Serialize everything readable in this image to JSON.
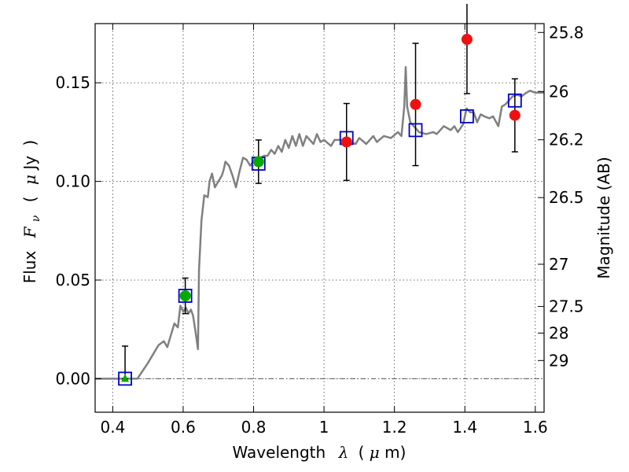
{
  "chart_data": {
    "type": "scatter",
    "xlabel_parts": [
      "Wavelength",
      "λ",
      "(",
      "μ",
      "m)"
    ],
    "ylabel_parts": [
      "Flux",
      "F",
      "ν",
      "(",
      "μ",
      "Jy",
      ")"
    ],
    "ylabel_right": "Magnitude (AB)",
    "xlim": [
      0.35,
      1.625
    ],
    "ylim": [
      -0.017,
      0.18
    ],
    "x_ticks": [
      0.4,
      0.6,
      0.8,
      1.0,
      1.2,
      1.4,
      1.6
    ],
    "x_tick_labels": [
      "0.4",
      "0.6",
      "0.8",
      "1",
      "1.2",
      "1.4",
      "1.6"
    ],
    "y_ticks": [
      0.0,
      0.05,
      0.1,
      0.15
    ],
    "y_tick_labels": [
      "0.00",
      "0.05",
      "0.10",
      "0.15"
    ],
    "mag_ticks": [
      {
        "label": "25.8",
        "flux": 0.1755
      },
      {
        "label": "26",
        "flux": 0.1456
      },
      {
        "label": "26.2",
        "flux": 0.1211
      },
      {
        "label": "26.5",
        "flux": 0.0918
      },
      {
        "label": "27",
        "flux": 0.058
      },
      {
        "label": "27.5",
        "flux": 0.0366
      },
      {
        "label": "28",
        "flux": 0.0231
      },
      {
        "label": "29",
        "flux": 0.0092
      }
    ],
    "grid": true,
    "zero_line": true,
    "sed_model": {
      "name": "model spectrum",
      "color": "#808080",
      "points": [
        [
          0.35,
          0.0
        ],
        [
          0.47,
          0.0
        ],
        [
          0.485,
          0.004
        ],
        [
          0.5,
          0.008
        ],
        [
          0.52,
          0.014
        ],
        [
          0.53,
          0.017
        ],
        [
          0.545,
          0.019
        ],
        [
          0.555,
          0.016
        ],
        [
          0.565,
          0.022
        ],
        [
          0.575,
          0.028
        ],
        [
          0.585,
          0.026
        ],
        [
          0.592,
          0.037
        ],
        [
          0.6,
          0.034
        ],
        [
          0.608,
          0.036
        ],
        [
          0.615,
          0.033
        ],
        [
          0.622,
          0.035
        ],
        [
          0.628,
          0.032
        ],
        [
          0.635,
          0.024
        ],
        [
          0.642,
          0.015
        ],
        [
          0.645,
          0.055
        ],
        [
          0.652,
          0.08
        ],
        [
          0.66,
          0.093
        ],
        [
          0.67,
          0.092
        ],
        [
          0.675,
          0.1
        ],
        [
          0.682,
          0.104
        ],
        [
          0.69,
          0.097
        ],
        [
          0.7,
          0.1
        ],
        [
          0.71,
          0.103
        ],
        [
          0.715,
          0.106
        ],
        [
          0.72,
          0.11
        ],
        [
          0.73,
          0.108
        ],
        [
          0.74,
          0.103
        ],
        [
          0.75,
          0.097
        ],
        [
          0.76,
          0.105
        ],
        [
          0.77,
          0.112
        ],
        [
          0.78,
          0.111
        ],
        [
          0.79,
          0.108
        ],
        [
          0.8,
          0.11
        ],
        [
          0.81,
          0.111
        ],
        [
          0.83,
          0.113
        ],
        [
          0.84,
          0.113
        ],
        [
          0.85,
          0.116
        ],
        [
          0.86,
          0.114
        ],
        [
          0.87,
          0.118
        ],
        [
          0.88,
          0.115
        ],
        [
          0.89,
          0.121
        ],
        [
          0.9,
          0.117
        ],
        [
          0.91,
          0.123
        ],
        [
          0.92,
          0.118
        ],
        [
          0.93,
          0.124
        ],
        [
          0.94,
          0.118
        ],
        [
          0.95,
          0.123
        ],
        [
          0.97,
          0.119
        ],
        [
          0.98,
          0.124
        ],
        [
          0.99,
          0.12
        ],
        [
          1.0,
          0.121
        ],
        [
          1.02,
          0.118
        ],
        [
          1.03,
          0.121
        ],
        [
          1.05,
          0.121
        ],
        [
          1.07,
          0.12
        ],
        [
          1.09,
          0.119
        ],
        [
          1.1,
          0.122
        ],
        [
          1.12,
          0.119
        ],
        [
          1.14,
          0.123
        ],
        [
          1.15,
          0.12
        ],
        [
          1.17,
          0.123
        ],
        [
          1.19,
          0.122
        ],
        [
          1.21,
          0.125
        ],
        [
          1.22,
          0.123
        ],
        [
          1.228,
          0.138
        ],
        [
          1.232,
          0.158
        ],
        [
          1.236,
          0.138
        ],
        [
          1.245,
          0.13
        ],
        [
          1.255,
          0.128
        ],
        [
          1.27,
          0.125
        ],
        [
          1.29,
          0.124
        ],
        [
          1.31,
          0.125
        ],
        [
          1.32,
          0.124
        ],
        [
          1.34,
          0.128
        ],
        [
          1.36,
          0.126
        ],
        [
          1.37,
          0.128
        ],
        [
          1.38,
          0.125
        ],
        [
          1.395,
          0.129
        ],
        [
          1.405,
          0.137
        ],
        [
          1.415,
          0.135
        ],
        [
          1.425,
          0.135
        ],
        [
          1.435,
          0.13
        ],
        [
          1.445,
          0.134
        ],
        [
          1.455,
          0.133
        ],
        [
          1.47,
          0.132
        ],
        [
          1.48,
          0.133
        ],
        [
          1.495,
          0.128
        ],
        [
          1.505,
          0.138
        ],
        [
          1.515,
          0.139
        ],
        [
          1.525,
          0.141
        ],
        [
          1.535,
          0.143
        ],
        [
          1.55,
          0.144
        ],
        [
          1.56,
          0.143
        ],
        [
          1.575,
          0.145
        ],
        [
          1.585,
          0.146
        ],
        [
          1.6,
          0.145
        ],
        [
          1.625,
          0.145
        ]
      ]
    },
    "model_band_fluxes": {
      "name": "model band fluxes",
      "color": "#0000cc",
      "points": [
        [
          0.435,
          0.0
        ],
        [
          0.606,
          0.042
        ],
        [
          0.814,
          0.109
        ],
        [
          1.064,
          0.122
        ],
        [
          1.26,
          0.126
        ],
        [
          1.406,
          0.133
        ],
        [
          1.542,
          0.141
        ]
      ]
    },
    "optical_detections": {
      "name": "optical detections",
      "color": "#00aa00",
      "points": [
        {
          "x": 0.606,
          "y": 0.042,
          "err": 0.009
        },
        {
          "x": 0.814,
          "y": 0.11,
          "err": 0.011
        }
      ]
    },
    "optical_upper": {
      "name": "B-band point",
      "color": "#00aa00",
      "points": [
        {
          "x": 0.435,
          "y": 0.0,
          "err_up": 0.0165,
          "err_down": 0.0
        }
      ]
    },
    "nir_detections": {
      "name": "near-IR detections",
      "color": "#ee1111",
      "points": [
        {
          "x": 1.064,
          "y": 0.12,
          "err": 0.0195
        },
        {
          "x": 1.26,
          "y": 0.139,
          "err": 0.031
        },
        {
          "x": 1.406,
          "y": 0.172,
          "err": 0.0275
        },
        {
          "x": 1.542,
          "y": 0.1335,
          "err": 0.0185
        }
      ]
    }
  }
}
